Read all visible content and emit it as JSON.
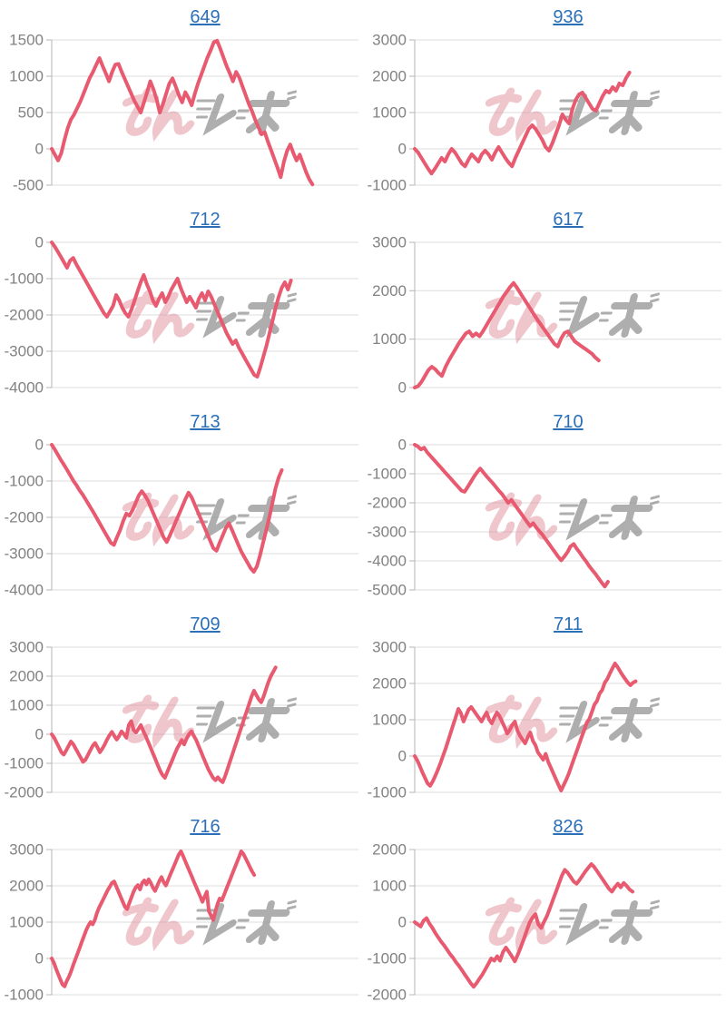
{
  "page": {
    "background": "#ffffff"
  },
  "style": {
    "line_color": "#e85a70",
    "grid_color": "#dcdcdc",
    "axis_color": "#b5b5b5",
    "tick_label_color": "#828282",
    "title_link_color": "#2a6fb8",
    "watermark_pink": "#e08e9b",
    "watermark_gray": "#9a9a9a"
  },
  "watermark": {
    "name": "minrepo-logo-watermark"
  },
  "chart_data": [
    {
      "type": "line",
      "title": "649",
      "ylim": [
        -500,
        1500
      ],
      "yticks": [
        1500,
        1000,
        500,
        0,
        -500
      ],
      "x_span": 0.85,
      "grid": true,
      "values": [
        0,
        -80,
        -160,
        -60,
        120,
        280,
        400,
        470,
        560,
        650,
        760,
        870,
        980,
        1060,
        1160,
        1250,
        1140,
        1040,
        930,
        1060,
        1160,
        1170,
        1060,
        960,
        860,
        760,
        660,
        580,
        500,
        640,
        780,
        930,
        820,
        680,
        500,
        620,
        760,
        900,
        970,
        860,
        740,
        640,
        780,
        700,
        600,
        760,
        900,
        1020,
        1140,
        1260,
        1360,
        1470,
        1490,
        1380,
        1260,
        1140,
        1040,
        930,
        1060,
        980,
        860,
        740,
        620,
        520,
        400,
        300,
        200,
        230,
        100,
        -20,
        -140,
        -260,
        -390,
        -180,
        -30,
        60,
        -60,
        -160,
        -80,
        -200,
        -320,
        -420,
        -490
      ]
    },
    {
      "type": "line",
      "title": "936",
      "ylim": [
        -1000,
        3000
      ],
      "yticks": [
        3000,
        2000,
        1000,
        0,
        -1000
      ],
      "x_span": 0.7,
      "grid": true,
      "values": [
        0,
        -100,
        -250,
        -400,
        -550,
        -680,
        -550,
        -400,
        -250,
        -350,
        -150,
        0,
        -100,
        -250,
        -400,
        -480,
        -300,
        -150,
        -250,
        -350,
        -150,
        -50,
        -150,
        -300,
        -100,
        50,
        -100,
        -250,
        -380,
        -480,
        -250,
        -50,
        150,
        350,
        550,
        650,
        550,
        400,
        250,
        50,
        -50,
        150,
        400,
        650,
        950,
        800,
        700,
        1100,
        1350,
        1500,
        1550,
        1400,
        1250,
        1100,
        1050,
        1250,
        1450,
        1600,
        1550,
        1700,
        1600,
        1800,
        1750,
        1950,
        2100
      ]
    },
    {
      "type": "line",
      "title": "712",
      "ylim": [
        -4000,
        0
      ],
      "yticks": [
        0,
        -1000,
        -2000,
        -3000,
        -4000
      ],
      "x_span": 0.78,
      "grid": true,
      "values": [
        0,
        -120,
        -260,
        -400,
        -550,
        -700,
        -500,
        -430,
        -600,
        -750,
        -900,
        -1050,
        -1200,
        -1350,
        -1500,
        -1650,
        -1800,
        -1950,
        -2050,
        -1900,
        -1750,
        -1450,
        -1600,
        -1800,
        -1950,
        -2050,
        -1850,
        -1600,
        -1350,
        -1100,
        -900,
        -1150,
        -1350,
        -1600,
        -1750,
        -1550,
        -1400,
        -1650,
        -1500,
        -1300,
        -1150,
        -1000,
        -1250,
        -1450,
        -1650,
        -1500,
        -1650,
        -1800,
        -1550,
        -1400,
        -1600,
        -1350,
        -1500,
        -1700,
        -1900,
        -2100,
        -2300,
        -2500,
        -2650,
        -2800,
        -2700,
        -2900,
        -3050,
        -3200,
        -3350,
        -3500,
        -3650,
        -3700,
        -3450,
        -3150,
        -2850,
        -2500,
        -2150,
        -1800,
        -1500,
        -1250,
        -1100,
        -1300,
        -1050
      ]
    },
    {
      "type": "line",
      "title": "617",
      "ylim": [
        0,
        3000
      ],
      "yticks": [
        3000,
        2000,
        1000,
        0
      ],
      "x_span": 0.6,
      "grid": true,
      "values": [
        0,
        30,
        120,
        240,
        360,
        430,
        380,
        300,
        240,
        420,
        560,
        680,
        800,
        920,
        1020,
        1120,
        1160,
        1060,
        1120,
        1060,
        1160,
        1280,
        1400,
        1520,
        1640,
        1760,
        1880,
        1980,
        2080,
        2160,
        2060,
        1950,
        1840,
        1730,
        1620,
        1510,
        1400,
        1300,
        1200,
        1100,
        1000,
        900,
        850,
        1020,
        1130,
        1160,
        1050,
        950,
        900,
        850,
        800,
        750,
        700,
        620,
        560
      ]
    },
    {
      "type": "line",
      "title": "713",
      "ylim": [
        -4000,
        0
      ],
      "yticks": [
        0,
        -1000,
        -2000,
        -3000,
        -4000
      ],
      "x_span": 0.75,
      "grid": true,
      "values": [
        0,
        -130,
        -280,
        -430,
        -560,
        -700,
        -850,
        -1000,
        -1120,
        -1260,
        -1380,
        -1520,
        -1660,
        -1800,
        -1950,
        -2100,
        -2250,
        -2400,
        -2550,
        -2700,
        -2760,
        -2550,
        -2350,
        -2100,
        -1900,
        -1950,
        -1800,
        -1600,
        -1400,
        -1280,
        -1400,
        -1550,
        -1750,
        -1950,
        -2150,
        -2350,
        -2550,
        -2680,
        -2500,
        -2300,
        -2100,
        -1900,
        -1700,
        -1500,
        -1320,
        -1450,
        -1650,
        -1850,
        -2050,
        -2250,
        -2450,
        -2650,
        -2850,
        -2920,
        -2700,
        -2500,
        -2300,
        -2160,
        -2350,
        -2550,
        -2750,
        -2950,
        -3100,
        -3250,
        -3400,
        -3500,
        -3350,
        -3050,
        -2700,
        -2350,
        -2000,
        -1600,
        -1200,
        -900,
        -700
      ]
    },
    {
      "type": "line",
      "title": "710",
      "ylim": [
        -5000,
        0
      ],
      "yticks": [
        0,
        -1000,
        -2000,
        -3000,
        -4000,
        -5000
      ],
      "x_span": 0.63,
      "grid": true,
      "values": [
        0,
        -60,
        -160,
        -100,
        -260,
        -380,
        -500,
        -620,
        -740,
        -860,
        -980,
        -1100,
        -1220,
        -1340,
        -1460,
        -1580,
        -1620,
        -1450,
        -1280,
        -1100,
        -950,
        -820,
        -950,
        -1080,
        -1200,
        -1320,
        -1450,
        -1580,
        -1700,
        -1850,
        -2000,
        -1900,
        -2050,
        -2200,
        -2350,
        -2500,
        -2650,
        -2800,
        -2700,
        -2850,
        -2980,
        -3100,
        -3250,
        -3400,
        -3550,
        -3700,
        -3850,
        -3980,
        -3850,
        -3700,
        -3500,
        -3420,
        -3580,
        -3720,
        -3880,
        -4020,
        -4180,
        -4320,
        -4450,
        -4600,
        -4750,
        -4880,
        -4720
      ]
    },
    {
      "type": "line",
      "title": "709",
      "ylim": [
        -2000,
        3000
      ],
      "yticks": [
        3000,
        2000,
        1000,
        0,
        -1000,
        -2000
      ],
      "x_span": 0.73,
      "grid": true,
      "values": [
        0,
        -120,
        -280,
        -450,
        -620,
        -700,
        -560,
        -400,
        -250,
        -350,
        -500,
        -650,
        -800,
        -950,
        -880,
        -720,
        -560,
        -400,
        -300,
        -450,
        -620,
        -500,
        -350,
        -180,
        -30,
        80,
        -60,
        -180,
        -60,
        100,
        0,
        -120,
        320,
        450,
        150,
        60,
        180,
        320,
        120,
        -60,
        -250,
        -450,
        -650,
        -850,
        -1050,
        -1250,
        -1400,
        -1500,
        -1300,
        -1100,
        -900,
        -700,
        -500,
        -350,
        -200,
        -350,
        -150,
        0,
        100,
        -50,
        -200,
        -400,
        -600,
        -800,
        -1000,
        -1200,
        -1350,
        -1500,
        -1580,
        -1480,
        -1580,
        -1650,
        -1450,
        -1200,
        -950,
        -700,
        -450,
        -200,
        50,
        300,
        550,
        800,
        1050,
        1300,
        1500,
        1350,
        1200,
        1100,
        1300,
        1550,
        1800,
        2000,
        2150,
        2300
      ]
    },
    {
      "type": "line",
      "title": "711",
      "ylim": [
        -1000,
        3000
      ],
      "yticks": [
        3000,
        2000,
        1000,
        0,
        -1000
      ],
      "x_span": 0.72,
      "grid": true,
      "values": [
        0,
        -120,
        -280,
        -450,
        -600,
        -750,
        -820,
        -700,
        -550,
        -380,
        -200,
        0,
        200,
        420,
        640,
        860,
        1080,
        1300,
        1180,
        950,
        1120,
        1280,
        1350,
        1250,
        1150,
        1050,
        950,
        1080,
        1200,
        1000,
        900,
        1060,
        1200,
        1100,
        950,
        800,
        620,
        720,
        860,
        950,
        700,
        560,
        450,
        350,
        520,
        650,
        420,
        300,
        100,
        0,
        -100,
        60,
        -160,
        -320,
        -480,
        -640,
        -800,
        -950,
        -800,
        -650,
        -480,
        -280,
        -80,
        120,
        320,
        520,
        720,
        920,
        1020,
        1220,
        1420,
        1520,
        1720,
        1820,
        2020,
        2120,
        2280,
        2420,
        2550,
        2450,
        2330,
        2220,
        2120,
        2020,
        1950,
        2020,
        2060
      ]
    },
    {
      "type": "line",
      "title": "716",
      "ylim": [
        -1000,
        3000
      ],
      "yticks": [
        3000,
        2000,
        1000,
        0,
        -1000
      ],
      "x_span": 0.66,
      "grid": true,
      "values": [
        0,
        -120,
        -280,
        -430,
        -580,
        -720,
        -770,
        -620,
        -500,
        -350,
        -180,
        -20,
        140,
        300,
        460,
        620,
        780,
        900,
        1000,
        940,
        1060,
        1250,
        1400,
        1520,
        1640,
        1760,
        1880,
        1980,
        2080,
        2120,
        1980,
        1840,
        1700,
        1560,
        1420,
        1360,
        1520,
        1680,
        1840,
        1960,
        2020,
        1900,
        2080,
        2150,
        2040,
        2180,
        2080,
        1950,
        1860,
        2000,
        2140,
        2240,
        2100,
        2010,
        2160,
        2300,
        2440,
        2580,
        2720,
        2860,
        2950,
        2820,
        2680,
        2540,
        2400,
        2260,
        2120,
        1980,
        1840,
        1700,
        1560,
        1700,
        1840,
        1300,
        1180,
        1060,
        1300,
        1500,
        1650,
        1600,
        1750,
        1900,
        2050,
        2200,
        2350,
        2500,
        2650,
        2800,
        2950,
        2880,
        2760,
        2640,
        2520,
        2400,
        2300
      ]
    },
    {
      "type": "line",
      "title": "826",
      "ylim": [
        -2000,
        2000
      ],
      "yticks": [
        2000,
        1000,
        0,
        -1000,
        -2000
      ],
      "x_span": 0.71,
      "grid": true,
      "values": [
        0,
        -60,
        -120,
        40,
        110,
        -40,
        -160,
        -300,
        -420,
        -540,
        -640,
        -760,
        -880,
        -980,
        -1100,
        -1200,
        -1320,
        -1440,
        -1560,
        -1680,
        -1780,
        -1680,
        -1560,
        -1440,
        -1300,
        -1150,
        -1000,
        -1060,
        -940,
        -1060,
        -820,
        -700,
        -820,
        -940,
        -1080,
        -900,
        -700,
        -480,
        -250,
        -20,
        120,
        220,
        -60,
        -160,
        20,
        180,
        400,
        620,
        840,
        1060,
        1280,
        1440,
        1360,
        1240,
        1120,
        1060,
        1160,
        1280,
        1400,
        1500,
        1600,
        1520,
        1400,
        1280,
        1160,
        1040,
        920,
        840,
        960,
        1060,
        960,
        1080,
        1000,
        900,
        840
      ]
    }
  ]
}
